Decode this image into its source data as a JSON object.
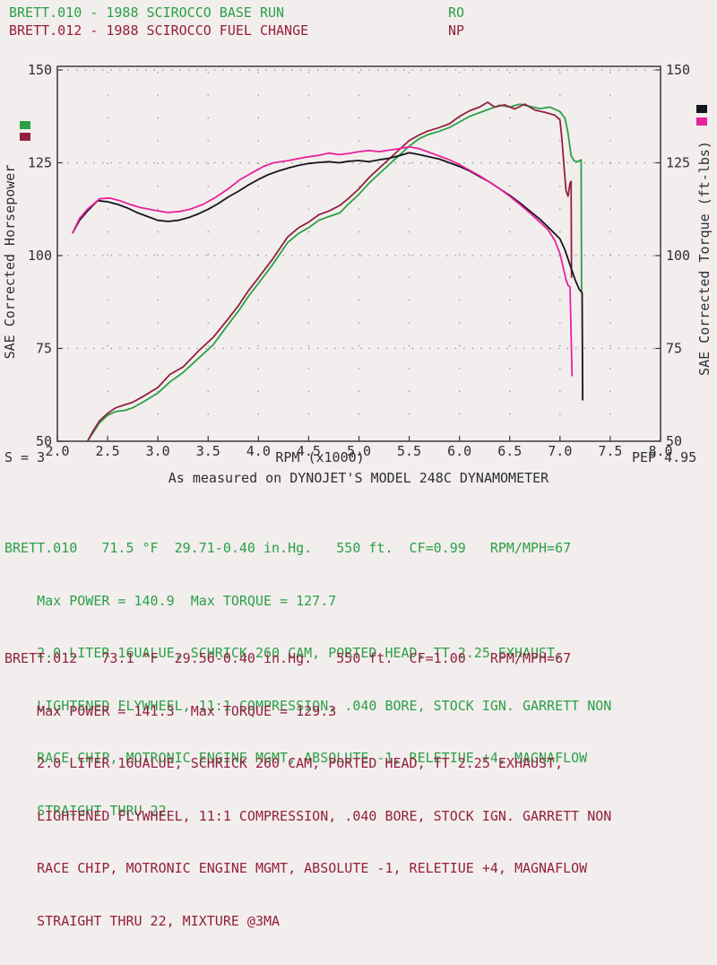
{
  "header": {
    "runs": [
      {
        "title": "BRETT.010 - 1988 SCIROCCO BASE RUN",
        "code": "RO"
      },
      {
        "title": "BRETT.012 - 1988 SCIROCCO FUEL CHANGE",
        "code": "NP"
      }
    ]
  },
  "chart_data": {
    "type": "line",
    "xlabel": "RPM (x1000)",
    "ylabel_left": "SAE Corrected Horsepower",
    "ylabel_right": "SAE Corrected Torque (ft-lbs)",
    "xlim": [
      2.0,
      8.0
    ],
    "ylim_left": [
      50,
      150
    ],
    "ylim_right": [
      50,
      150
    ],
    "x_ticks": [
      "2.0",
      "2.5",
      "3.0",
      "3.5",
      "4.0",
      "4.5",
      "5.0",
      "5.5",
      "6.0",
      "6.5",
      "7.0",
      "7.5",
      "8.0"
    ],
    "y_ticks": [
      "150",
      "125",
      "100",
      "75",
      "50"
    ],
    "grid": "dotted",
    "legend": {
      "left_colors": [
        "#2ba046",
        "#93203f"
      ],
      "right_colors": [
        "#15151d",
        "#e8219c"
      ]
    },
    "series": [
      {
        "name": "BRETT.010 horsepower",
        "axis": "left",
        "color": "#2ba046",
        "points": [
          [
            2.3,
            50
          ],
          [
            2.36,
            52.5
          ],
          [
            2.42,
            55
          ],
          [
            2.5,
            57
          ],
          [
            2.58,
            58
          ],
          [
            2.67,
            58.3
          ],
          [
            2.75,
            59
          ],
          [
            2.85,
            60.5
          ],
          [
            3.0,
            63
          ],
          [
            3.12,
            66
          ],
          [
            3.25,
            68.5
          ],
          [
            3.41,
            72.5
          ],
          [
            3.55,
            76
          ],
          [
            3.7,
            81.5
          ],
          [
            3.8,
            85
          ],
          [
            3.9,
            89
          ],
          [
            4.0,
            92.5
          ],
          [
            4.14,
            97.5
          ],
          [
            4.29,
            103.5
          ],
          [
            4.4,
            106
          ],
          [
            4.5,
            107.5
          ],
          [
            4.6,
            109.5
          ],
          [
            4.7,
            110.5
          ],
          [
            4.81,
            111.5
          ],
          [
            4.9,
            114
          ],
          [
            5.0,
            116.5
          ],
          [
            5.1,
            119.5
          ],
          [
            5.2,
            122
          ],
          [
            5.28,
            124
          ],
          [
            5.4,
            127
          ],
          [
            5.5,
            129.5
          ],
          [
            5.6,
            131.5
          ],
          [
            5.68,
            132.5
          ],
          [
            5.8,
            133.5
          ],
          [
            5.9,
            134.5
          ],
          [
            6.0,
            136
          ],
          [
            6.1,
            137.5
          ],
          [
            6.2,
            138.5
          ],
          [
            6.3,
            139.5
          ],
          [
            6.4,
            140.5
          ],
          [
            6.5,
            140
          ],
          [
            6.6,
            140.8
          ],
          [
            6.7,
            140.2
          ],
          [
            6.8,
            139.6
          ],
          [
            6.9,
            140
          ],
          [
            7.0,
            138.8
          ],
          [
            7.05,
            137
          ],
          [
            7.08,
            133
          ],
          [
            7.11,
            127
          ],
          [
            7.14,
            125.5
          ],
          [
            7.18,
            125.3
          ],
          [
            7.21,
            125.8
          ],
          [
            7.215,
            90
          ]
        ]
      },
      {
        "name": "BRETT.012 horsepower",
        "axis": "left",
        "color": "#93203f",
        "points": [
          [
            2.3,
            50
          ],
          [
            2.36,
            53
          ],
          [
            2.42,
            55.5
          ],
          [
            2.5,
            57.5
          ],
          [
            2.58,
            59
          ],
          [
            2.67,
            59.8
          ],
          [
            2.75,
            60.5
          ],
          [
            2.85,
            62
          ],
          [
            3.0,
            64.5
          ],
          [
            3.12,
            68
          ],
          [
            3.25,
            70
          ],
          [
            3.41,
            74.5
          ],
          [
            3.55,
            78
          ],
          [
            3.7,
            83
          ],
          [
            3.8,
            86.5
          ],
          [
            3.9,
            90.5
          ],
          [
            4.0,
            94
          ],
          [
            4.14,
            99
          ],
          [
            4.29,
            105
          ],
          [
            4.4,
            107.5
          ],
          [
            4.5,
            109
          ],
          [
            4.6,
            111
          ],
          [
            4.7,
            112
          ],
          [
            4.81,
            113.5
          ],
          [
            4.9,
            115.5
          ],
          [
            5.0,
            118
          ],
          [
            5.1,
            121
          ],
          [
            5.2,
            123.5
          ],
          [
            5.28,
            125.5
          ],
          [
            5.4,
            128.5
          ],
          [
            5.5,
            131
          ],
          [
            5.6,
            132.5
          ],
          [
            5.68,
            133.5
          ],
          [
            5.8,
            134.5
          ],
          [
            5.9,
            135.5
          ],
          [
            6.0,
            137.5
          ],
          [
            6.1,
            139
          ],
          [
            6.2,
            140
          ],
          [
            6.28,
            141.3
          ],
          [
            6.35,
            140
          ],
          [
            6.45,
            140.6
          ],
          [
            6.55,
            139.5
          ],
          [
            6.65,
            140.8
          ],
          [
            6.75,
            139.2
          ],
          [
            6.85,
            138.6
          ],
          [
            6.95,
            137.8
          ],
          [
            7.0,
            136.5
          ],
          [
            7.02,
            131
          ],
          [
            7.04,
            124
          ],
          [
            7.06,
            117.5
          ],
          [
            7.08,
            116
          ],
          [
            7.1,
            119.5
          ],
          [
            7.11,
            120
          ],
          [
            7.115,
            94
          ]
        ]
      },
      {
        "name": "BRETT.010 torque",
        "axis": "right",
        "color": "#15151d",
        "points": [
          [
            2.15,
            106
          ],
          [
            2.22,
            109.5
          ],
          [
            2.3,
            112
          ],
          [
            2.4,
            114.8
          ],
          [
            2.5,
            114.5
          ],
          [
            2.6,
            113.8
          ],
          [
            2.7,
            112.8
          ],
          [
            2.8,
            111.5
          ],
          [
            2.9,
            110.5
          ],
          [
            3.0,
            109.5
          ],
          [
            3.1,
            109.2
          ],
          [
            3.2,
            109.5
          ],
          [
            3.3,
            110.2
          ],
          [
            3.4,
            111.2
          ],
          [
            3.5,
            112.5
          ],
          [
            3.6,
            114
          ],
          [
            3.7,
            115.8
          ],
          [
            3.8,
            117.3
          ],
          [
            3.9,
            119
          ],
          [
            4.0,
            120.5
          ],
          [
            4.1,
            121.8
          ],
          [
            4.2,
            122.8
          ],
          [
            4.3,
            123.6
          ],
          [
            4.4,
            124.3
          ],
          [
            4.5,
            124.8
          ],
          [
            4.6,
            125.1
          ],
          [
            4.7,
            125.3
          ],
          [
            4.8,
            125
          ],
          [
            4.9,
            125.4
          ],
          [
            5.0,
            125.6
          ],
          [
            5.1,
            125.3
          ],
          [
            5.2,
            125.8
          ],
          [
            5.3,
            126.2
          ],
          [
            5.4,
            126.9
          ],
          [
            5.5,
            127.7
          ],
          [
            5.6,
            127.2
          ],
          [
            5.7,
            126.6
          ],
          [
            5.8,
            126
          ],
          [
            5.9,
            125
          ],
          [
            6.0,
            124
          ],
          [
            6.1,
            122.8
          ],
          [
            6.2,
            121.3
          ],
          [
            6.3,
            119.8
          ],
          [
            6.4,
            118
          ],
          [
            6.5,
            116.2
          ],
          [
            6.6,
            114.2
          ],
          [
            6.7,
            112
          ],
          [
            6.8,
            109.8
          ],
          [
            6.9,
            107.2
          ],
          [
            7.0,
            104.5
          ],
          [
            7.05,
            101.5
          ],
          [
            7.1,
            97.5
          ],
          [
            7.15,
            93.5
          ],
          [
            7.19,
            91
          ],
          [
            7.22,
            90
          ],
          [
            7.225,
            61
          ]
        ]
      },
      {
        "name": "BRETT.012 torque",
        "axis": "right",
        "color": "#e8219c",
        "points": [
          [
            2.15,
            106
          ],
          [
            2.22,
            110
          ],
          [
            2.3,
            112.5
          ],
          [
            2.42,
            115.3
          ],
          [
            2.52,
            115.5
          ],
          [
            2.62,
            114.8
          ],
          [
            2.72,
            113.8
          ],
          [
            2.82,
            113
          ],
          [
            2.95,
            112.3
          ],
          [
            3.1,
            111.6
          ],
          [
            3.22,
            111.9
          ],
          [
            3.32,
            112.5
          ],
          [
            3.45,
            113.8
          ],
          [
            3.58,
            115.8
          ],
          [
            3.7,
            118
          ],
          [
            3.82,
            120.5
          ],
          [
            3.95,
            122.5
          ],
          [
            4.05,
            124
          ],
          [
            4.15,
            125
          ],
          [
            4.3,
            125.6
          ],
          [
            4.45,
            126.4
          ],
          [
            4.6,
            127
          ],
          [
            4.7,
            127.6
          ],
          [
            4.8,
            127.2
          ],
          [
            4.9,
            127.5
          ],
          [
            5.0,
            128
          ],
          [
            5.1,
            128.3
          ],
          [
            5.2,
            128
          ],
          [
            5.3,
            128.4
          ],
          [
            5.4,
            128.8
          ],
          [
            5.5,
            129.3
          ],
          [
            5.6,
            128.8
          ],
          [
            5.7,
            127.8
          ],
          [
            5.8,
            126.8
          ],
          [
            5.9,
            125.8
          ],
          [
            6.0,
            124.5
          ],
          [
            6.1,
            123
          ],
          [
            6.2,
            121.5
          ],
          [
            6.3,
            119.8
          ],
          [
            6.4,
            118
          ],
          [
            6.5,
            116
          ],
          [
            6.6,
            113.8
          ],
          [
            6.7,
            111.5
          ],
          [
            6.8,
            109
          ],
          [
            6.88,
            107
          ],
          [
            6.95,
            104
          ],
          [
            7.0,
            100.5
          ],
          [
            7.03,
            97
          ],
          [
            7.06,
            93.5
          ],
          [
            7.08,
            92
          ],
          [
            7.1,
            91.5
          ],
          [
            7.12,
            67.5
          ]
        ]
      }
    ]
  },
  "footer": {
    "smoothing": "S = 3",
    "xlabel": "RPM (x1000)",
    "pep": "PEP 4.95",
    "dyno_note": "As measured on DYNOJET'S MODEL 248C DYNAMOMETER"
  },
  "runs": [
    {
      "lines": [
        "BRETT.010   71.5 °F  29.71-0.40 in.Hg.   550 ft.  CF=0.99   RPM/MPH=67",
        "    Max POWER = 140.9  Max TORQUE = 127.7",
        "    2.0 LITER 16UALUE, SCHRICK 260 CAM, PORTED HEAD, TT 2.25 EXHAUST,",
        "    LIGHTENED FLYWHEEL, 11:1 COMPRESSION, .040 BORE, STOCK IGN. GARRETT NON",
        "    RACE CHIP, MOTRONIC ENGINE MGMT, ABSOLUTE -1, RELETIUE +4, MAGNAFLOW",
        "    STRAIGHT THRU 22"
      ]
    },
    {
      "lines": [
        "BRETT.012   73.1 °F  29.56-0.40 in.Hg.   550 ft.  CF=1.00   RPM/MPH=67",
        "    Max POWER = 141.3  Max TORQUE = 129.3",
        "    2.0 LITER 16UALUE, SCHRICK 260 CAM, PORTED HEAD, TT 2.25 EXHAUST,",
        "    LIGHTENED FLYWHEEL, 11:1 COMPRESSION, .040 BORE, STOCK IGN. GARRETT NON",
        "    RACE CHIP, MOTRONIC ENGINE MGMT, ABSOLUTE -1, RELETIUE +4, MAGNAFLOW",
        "    STRAIGHT THRU 22, MIXTURE @3MA"
      ]
    }
  ]
}
